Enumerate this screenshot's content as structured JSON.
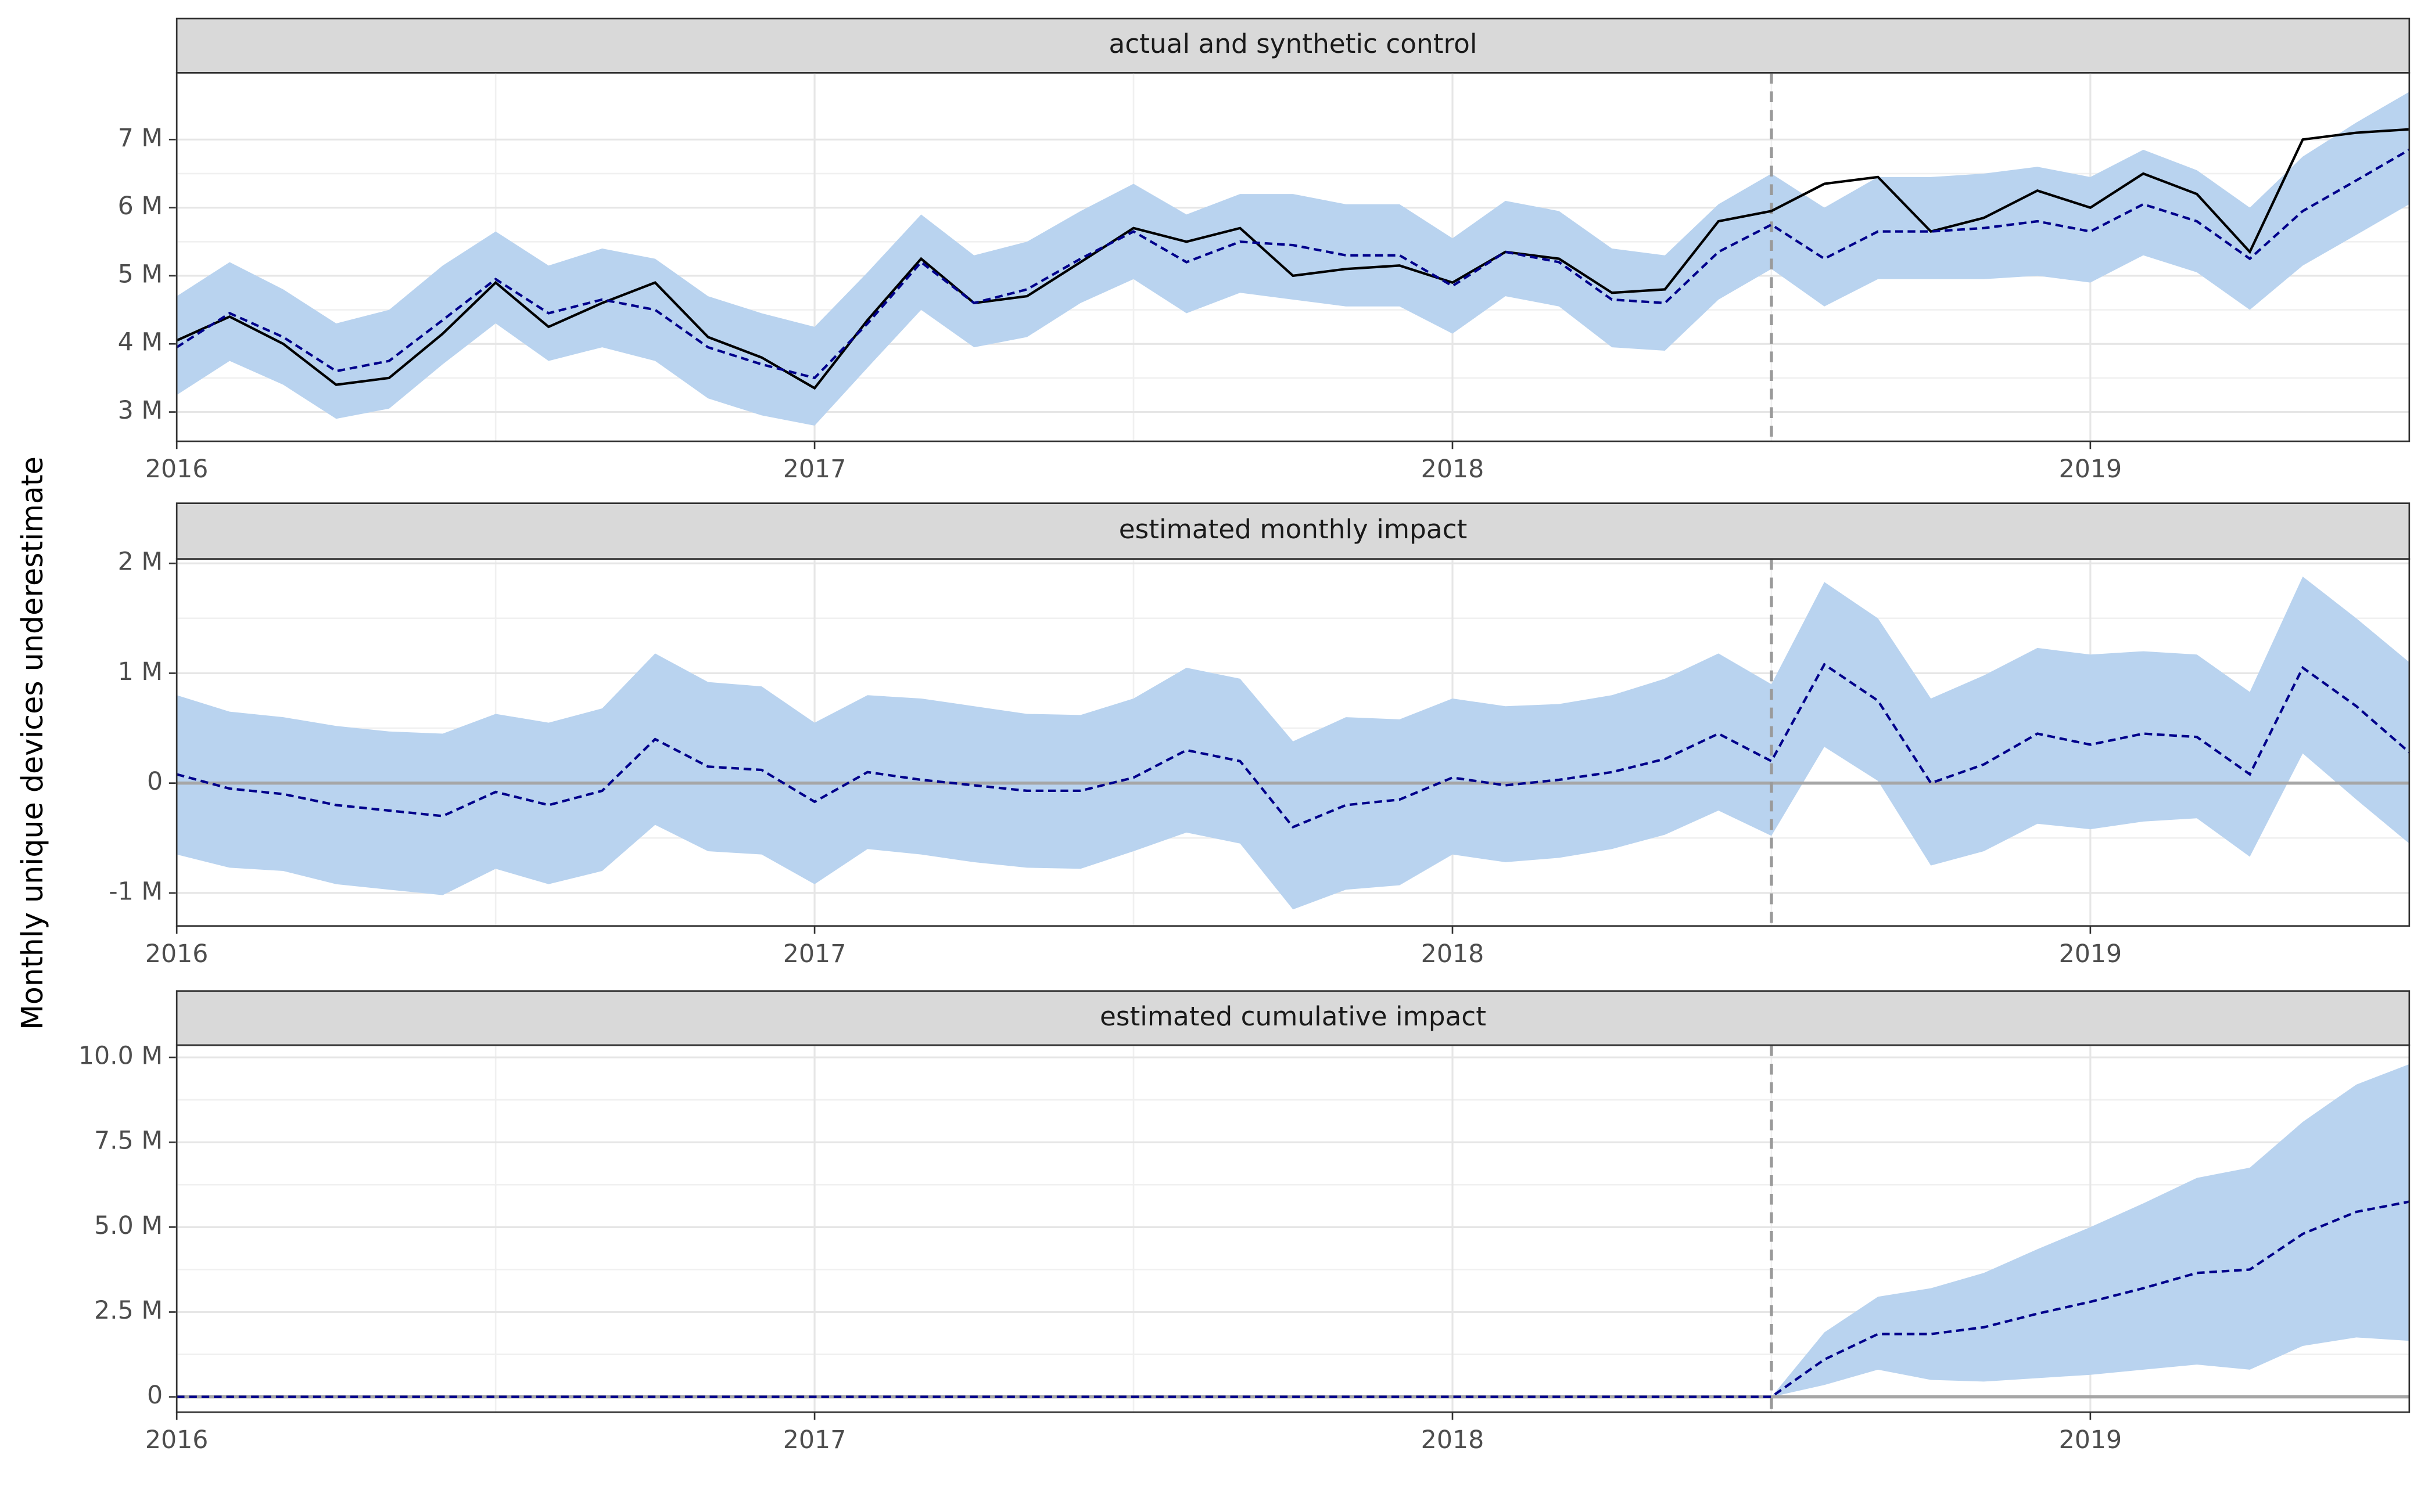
{
  "ylabel": "Monthly unique devices underestimate",
  "chart_data": [
    {
      "type": "line",
      "title": "actual and synthetic control",
      "x": [
        2016,
        2016.083,
        2016.167,
        2016.25,
        2016.333,
        2016.417,
        2016.5,
        2016.583,
        2016.667,
        2016.75,
        2016.833,
        2016.917,
        2017,
        2017.083,
        2017.167,
        2017.25,
        2017.333,
        2017.417,
        2017.5,
        2017.583,
        2017.667,
        2017.75,
        2017.833,
        2017.917,
        2018,
        2018.083,
        2018.167,
        2018.25,
        2018.333,
        2018.417,
        2018.5,
        2018.583,
        2018.667,
        2018.75,
        2018.833,
        2018.917,
        2019,
        2019.083,
        2019.167,
        2019.25,
        2019.333,
        2019.417,
        2019.5
      ],
      "xlim": [
        2016,
        2019.5
      ],
      "xticks": [
        2016,
        2017,
        2018,
        2019
      ],
      "ylim": [
        2.57,
        7.98
      ],
      "yticks": [
        {
          "value": 3,
          "label": "3 M"
        },
        {
          "value": 4,
          "label": "4 M"
        },
        {
          "value": 5,
          "label": "5 M"
        },
        {
          "value": 6,
          "label": "6 M"
        },
        {
          "value": 7,
          "label": "7 M"
        }
      ],
      "grid": true,
      "vline": 2018.5,
      "band": {
        "color": "#b9d3ef",
        "upper": [
          4.7,
          5.2,
          4.8,
          4.3,
          4.5,
          5.15,
          5.65,
          5.15,
          5.4,
          5.25,
          4.7,
          4.45,
          4.25,
          5.05,
          5.9,
          5.3,
          5.5,
          5.95,
          6.35,
          5.9,
          6.2,
          6.2,
          6.05,
          6.05,
          5.55,
          6.1,
          5.95,
          5.4,
          5.3,
          6.05,
          6.5,
          6.0,
          6.45,
          6.45,
          6.5,
          6.6,
          6.45,
          6.85,
          6.55,
          6.0,
          6.75,
          7.25,
          7.7
        ],
        "lower": [
          3.25,
          3.75,
          3.4,
          2.9,
          3.05,
          3.7,
          4.3,
          3.75,
          3.95,
          3.75,
          3.2,
          2.95,
          2.8,
          3.65,
          4.5,
          3.95,
          4.1,
          4.6,
          4.95,
          4.45,
          4.75,
          4.65,
          4.55,
          4.55,
          4.15,
          4.7,
          4.55,
          3.95,
          3.9,
          4.65,
          5.1,
          4.55,
          4.95,
          4.95,
          4.95,
          5.0,
          4.9,
          5.3,
          5.05,
          4.5,
          5.15,
          5.6,
          6.05
        ]
      },
      "series": [
        {
          "color": "#000000",
          "dash": false,
          "values": [
            4.05,
            4.4,
            4.0,
            3.4,
            3.5,
            4.15,
            4.9,
            4.25,
            4.6,
            4.9,
            4.1,
            3.8,
            3.35,
            4.35,
            5.25,
            4.6,
            4.7,
            5.2,
            5.7,
            5.5,
            5.7,
            5.0,
            5.1,
            5.15,
            4.9,
            5.35,
            5.25,
            4.75,
            4.8,
            5.8,
            5.95,
            6.35,
            6.45,
            5.65,
            5.85,
            6.25,
            6.0,
            6.5,
            6.2,
            5.35,
            7.0,
            7.1,
            7.15
          ]
        },
        {
          "color": "#00008b",
          "dash": true,
          "values": [
            3.95,
            4.45,
            4.1,
            3.6,
            3.75,
            4.35,
            4.95,
            4.45,
            4.65,
            4.5,
            3.95,
            3.7,
            3.5,
            4.3,
            5.2,
            4.6,
            4.8,
            5.25,
            5.65,
            5.2,
            5.5,
            5.45,
            5.3,
            5.3,
            4.85,
            5.35,
            5.2,
            4.65,
            4.6,
            5.35,
            5.75,
            5.25,
            5.65,
            5.65,
            5.7,
            5.8,
            5.65,
            6.05,
            5.8,
            5.25,
            5.95,
            6.4,
            6.85
          ]
        }
      ]
    },
    {
      "type": "line",
      "title": "estimated monthly impact",
      "x": [
        2016,
        2016.083,
        2016.167,
        2016.25,
        2016.333,
        2016.417,
        2016.5,
        2016.583,
        2016.667,
        2016.75,
        2016.833,
        2016.917,
        2017,
        2017.083,
        2017.167,
        2017.25,
        2017.333,
        2017.417,
        2017.5,
        2017.583,
        2017.667,
        2017.75,
        2017.833,
        2017.917,
        2018,
        2018.083,
        2018.167,
        2018.25,
        2018.333,
        2018.417,
        2018.5,
        2018.583,
        2018.667,
        2018.75,
        2018.833,
        2018.917,
        2019,
        2019.083,
        2019.167,
        2019.25,
        2019.333,
        2019.417,
        2019.5
      ],
      "xlim": [
        2016,
        2019.5
      ],
      "xticks": [
        2016,
        2017,
        2018,
        2019
      ],
      "ylim": [
        -1.3,
        2.04
      ],
      "yticks": [
        {
          "value": -1,
          "label": "-1 M"
        },
        0,
        {
          "value": 1,
          "label": "1 M"
        },
        {
          "value": 2,
          "label": "2 M"
        }
      ],
      "grid": true,
      "vline": 2018.5,
      "hline": 0,
      "band": {
        "color": "#b9d3ef",
        "upper": [
          0.8,
          0.65,
          0.6,
          0.52,
          0.47,
          0.45,
          0.63,
          0.55,
          0.68,
          1.18,
          0.92,
          0.88,
          0.55,
          0.8,
          0.77,
          0.7,
          0.63,
          0.62,
          0.77,
          1.05,
          0.95,
          0.38,
          0.6,
          0.58,
          0.77,
          0.7,
          0.72,
          0.8,
          0.95,
          1.18,
          0.9,
          1.83,
          1.5,
          0.77,
          0.98,
          1.23,
          1.17,
          1.2,
          1.17,
          0.83,
          1.88,
          1.5,
          1.1
        ],
        "lower": [
          -0.65,
          -0.77,
          -0.8,
          -0.92,
          -0.97,
          -1.02,
          -0.78,
          -0.92,
          -0.8,
          -0.38,
          -0.62,
          -0.65,
          -0.92,
          -0.6,
          -0.65,
          -0.72,
          -0.77,
          -0.78,
          -0.62,
          -0.45,
          -0.55,
          -1.15,
          -0.97,
          -0.93,
          -0.65,
          -0.72,
          -0.68,
          -0.6,
          -0.47,
          -0.25,
          -0.48,
          0.33,
          0.02,
          -0.75,
          -0.62,
          -0.37,
          -0.42,
          -0.35,
          -0.32,
          -0.67,
          0.27,
          -0.15,
          -0.55
        ]
      },
      "series": [
        {
          "color": "#00008b",
          "dash": true,
          "values": [
            0.08,
            -0.05,
            -0.1,
            -0.2,
            -0.25,
            -0.3,
            -0.08,
            -0.2,
            -0.07,
            0.4,
            0.15,
            0.12,
            -0.17,
            0.1,
            0.03,
            -0.02,
            -0.07,
            -0.07,
            0.05,
            0.3,
            0.2,
            -0.4,
            -0.2,
            -0.15,
            0.05,
            -0.02,
            0.03,
            0.1,
            0.22,
            0.45,
            0.2,
            1.08,
            0.75,
            0,
            0.17,
            0.45,
            0.35,
            0.45,
            0.42,
            0.08,
            1.05,
            0.7,
            0.28
          ]
        }
      ]
    },
    {
      "type": "line",
      "title": "estimated cumulative impact",
      "x": [
        2016,
        2016.083,
        2016.167,
        2016.25,
        2016.333,
        2016.417,
        2016.5,
        2016.583,
        2016.667,
        2016.75,
        2016.833,
        2016.917,
        2017,
        2017.083,
        2017.167,
        2017.25,
        2017.333,
        2017.417,
        2017.5,
        2017.583,
        2017.667,
        2017.75,
        2017.833,
        2017.917,
        2018,
        2018.083,
        2018.167,
        2018.25,
        2018.333,
        2018.417,
        2018.5,
        2018.583,
        2018.667,
        2018.75,
        2018.833,
        2018.917,
        2019,
        2019.083,
        2019.167,
        2019.25,
        2019.333,
        2019.417,
        2019.5
      ],
      "xlim": [
        2016,
        2019.5
      ],
      "xticks": [
        2016,
        2017,
        2018,
        2019
      ],
      "ylim": [
        -0.45,
        10.36
      ],
      "yticks": [
        0,
        {
          "value": 2.5,
          "label": "2.5 M"
        },
        {
          "value": 5,
          "label": "5.0 M"
        },
        {
          "value": 7.5,
          "label": "7.5 M"
        },
        {
          "value": 10,
          "label": "10.0 M"
        }
      ],
      "grid": true,
      "vline": 2018.5,
      "hline": 0,
      "band": {
        "color": "#b9d3ef",
        "upper": [
          0,
          0,
          0,
          0,
          0,
          0,
          0,
          0,
          0,
          0,
          0,
          0,
          0,
          0,
          0,
          0,
          0,
          0,
          0,
          0,
          0,
          0,
          0,
          0,
          0,
          0,
          0,
          0,
          0,
          0,
          0,
          1.9,
          2.95,
          3.2,
          3.65,
          4.35,
          5.0,
          5.7,
          6.45,
          6.75,
          8.1,
          9.2,
          9.8
        ],
        "lower": [
          0,
          0,
          0,
          0,
          0,
          0,
          0,
          0,
          0,
          0,
          0,
          0,
          0,
          0,
          0,
          0,
          0,
          0,
          0,
          0,
          0,
          0,
          0,
          0,
          0,
          0,
          0,
          0,
          0,
          0,
          0,
          0.35,
          0.8,
          0.5,
          0.45,
          0.55,
          0.65,
          0.8,
          0.95,
          0.8,
          1.5,
          1.75,
          1.65
        ]
      },
      "series": [
        {
          "color": "#00008b",
          "dash": true,
          "values": [
            0,
            0,
            0,
            0,
            0,
            0,
            0,
            0,
            0,
            0,
            0,
            0,
            0,
            0,
            0,
            0,
            0,
            0,
            0,
            0,
            0,
            0,
            0,
            0,
            0,
            0,
            0,
            0,
            0,
            0,
            0,
            1.1,
            1.85,
            1.85,
            2.05,
            2.45,
            2.8,
            3.2,
            3.65,
            3.75,
            4.8,
            5.45,
            5.75
          ]
        }
      ]
    }
  ]
}
